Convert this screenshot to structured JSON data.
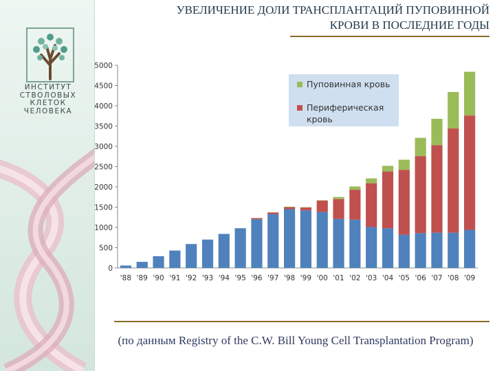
{
  "title": {
    "line1": "УВЕЛИЧЕНИЕ ДОЛИ ТРАНСПЛАНТАЦИЙ ПУПОВИННОЙ",
    "line2": "КРОВИ В ПОСЛЕДНИЕ ГОДЫ"
  },
  "logo": {
    "lines": [
      "ИНСТИТУТ",
      "СТВОЛОВЫХ",
      "КЛЕТОК",
      "ЧЕЛОВЕКА"
    ]
  },
  "source": "(по данным Registry of the C.W. Bill Young Cell Transplantation Program)",
  "colors": {
    "peripheral_blood": "#4f81bd",
    "cord_blood": "#9bbb59",
    "red_series": "#c0504d",
    "legend_bg": "#cfdff0",
    "accent_rule": "#8a6a2a"
  },
  "chart_data": {
    "type": "bar",
    "stacked": true,
    "categories": [
      "'88",
      "'89",
      "'90",
      "'91",
      "'92",
      "'93",
      "'94",
      "'95",
      "'96",
      "'97",
      "'98",
      "'99",
      "'00",
      "'01",
      "'02",
      "'03",
      "'04",
      "'05",
      "'06",
      "'07",
      "'08",
      "'09"
    ],
    "series": [
      {
        "name": "",
        "color": "#4f81bd",
        "values": [
          60,
          150,
          290,
          430,
          590,
          700,
          840,
          980,
          1200,
          1330,
          1450,
          1420,
          1380,
          1210,
          1190,
          1010,
          980,
          820,
          860,
          870,
          870,
          940
        ]
      },
      {
        "name": "Периферическая кровь",
        "color": "#c0504d",
        "values": [
          0,
          0,
          0,
          0,
          0,
          0,
          0,
          0,
          30,
          40,
          50,
          70,
          280,
          490,
          740,
          1080,
          1400,
          1600,
          1900,
          2160,
          2570,
          2820
        ]
      },
      {
        "name": "Пуповинная кровь",
        "color": "#9bbb59",
        "values": [
          0,
          0,
          0,
          0,
          0,
          0,
          0,
          0,
          0,
          0,
          10,
          10,
          10,
          50,
          80,
          120,
          140,
          250,
          450,
          650,
          900,
          1080
        ]
      }
    ],
    "ylim": [
      0,
      5000
    ],
    "yticks": [
      "0",
      "500",
      "1000",
      "1500",
      "2000",
      "2500",
      "3000",
      "3500",
      "4000",
      "4500",
      "5000"
    ],
    "grid": false,
    "legend_position": "top-right"
  }
}
